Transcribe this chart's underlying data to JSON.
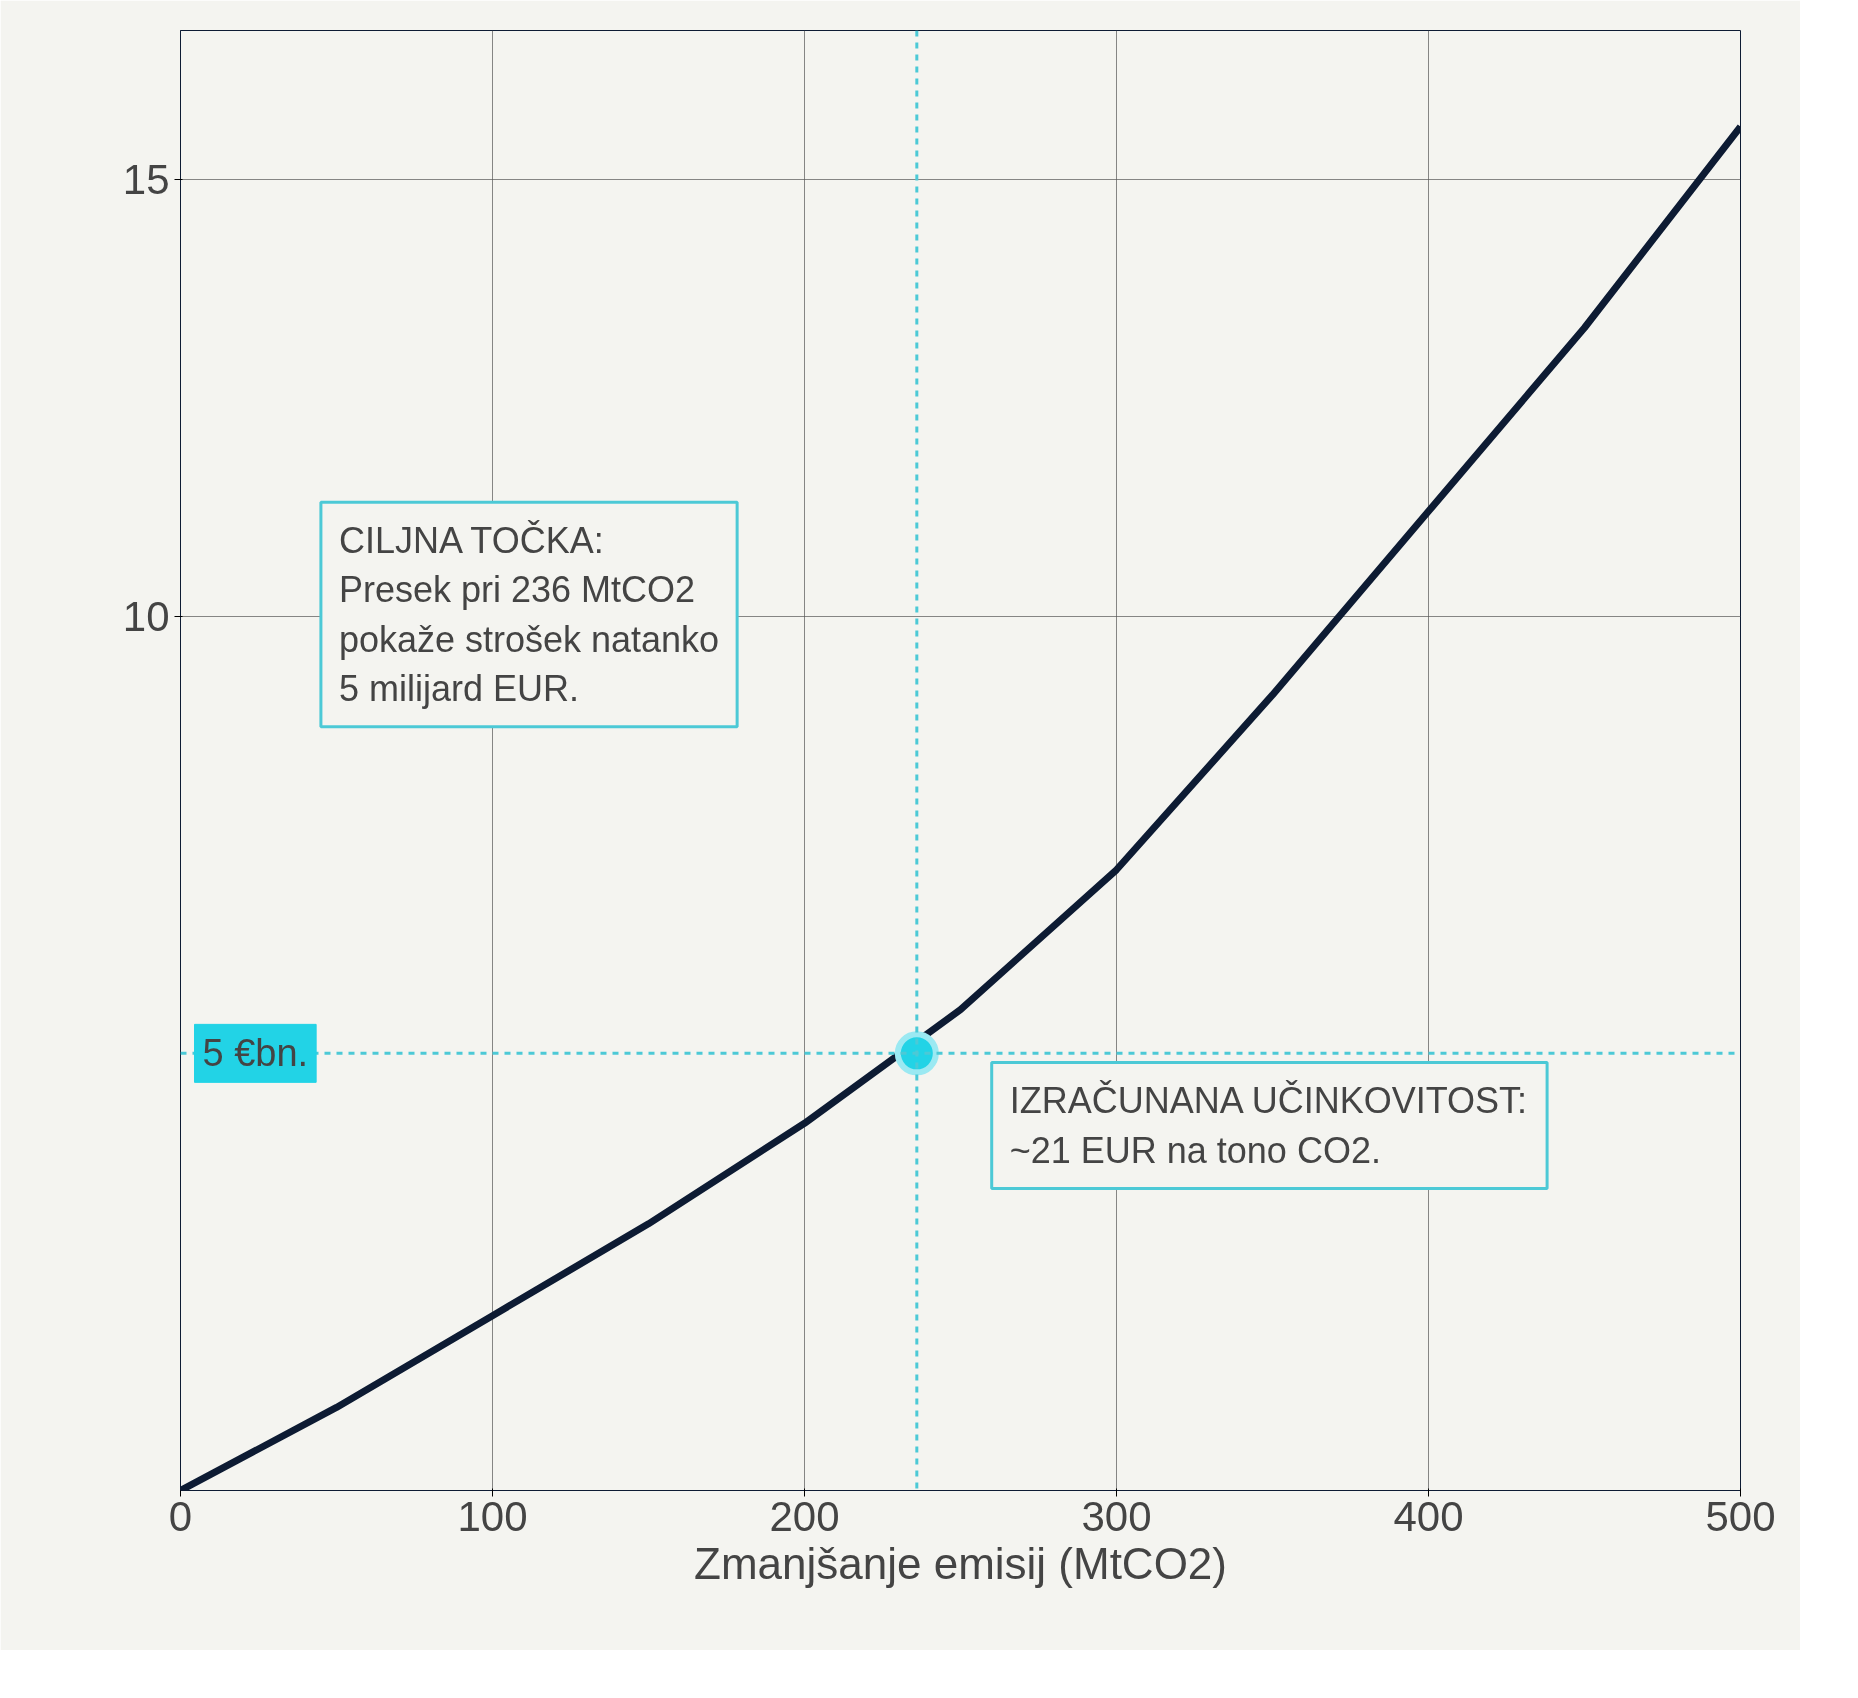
{
  "chart_data": {
    "type": "line",
    "xlabel": "Zmanjšanje emisij (MtCO2)",
    "x": [
      0,
      50,
      100,
      150,
      200,
      250,
      300,
      350,
      400,
      450,
      500
    ],
    "series": [
      {
        "color": "#0d1b33",
        "values": [
          0,
          0.95,
          2.0,
          3.05,
          4.2,
          5.5,
          7.1,
          9.1,
          11.2,
          13.3,
          15.6
        ]
      },
      {
        "type": "scatter",
        "color": "#22d3e6",
        "x": [
          236
        ],
        "values": [
          5
        ],
        "marker": "circle"
      }
    ],
    "xlim": [
      0,
      500
    ],
    "xticks": [
      0,
      100,
      200,
      300,
      400,
      500
    ],
    "ylim": [
      0,
      16.7
    ],
    "yticks": [
      10,
      15
    ],
    "grid": true,
    "line_style": "solid",
    "ref_lines": [
      {
        "axis": "x",
        "value": 236,
        "label": null,
        "color": "#4cc9d6",
        "line_style": "dashed"
      },
      {
        "axis": "y",
        "value": 5,
        "label": "5 €bn.",
        "color": "#4cc9d6",
        "line_style": "dashed"
      }
    ],
    "annotations": [
      "CILJNA TOČKA:\nPresek pri 236 MtCO2\npokaže strošek natanko\n5 milijard EUR.",
      "IZRAČUNANA UČINKOVITOST:\n ~21 EUR na tono CO2."
    ]
  }
}
